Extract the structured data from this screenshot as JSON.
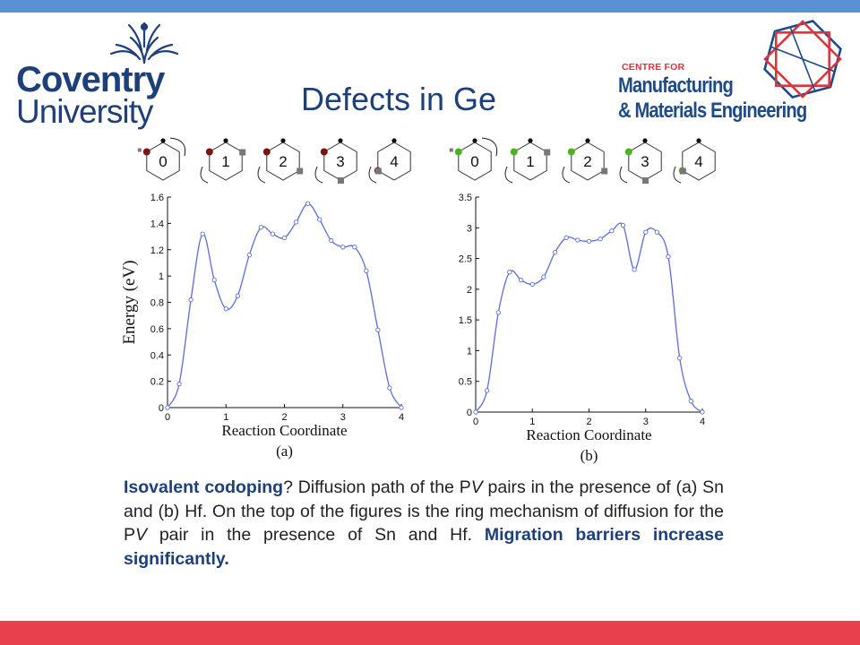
{
  "colors": {
    "top_bar": "#5b8fd6",
    "bottom_bar": "#e8404d",
    "title": "#1d3f7a",
    "curve": "#5b6ed8",
    "sn_dot": "#7b1414",
    "hf_dot": "#4cb320"
  },
  "logo_left": {
    "line1": "Coventry",
    "line2": "University"
  },
  "logo_right": {
    "small": "CENTRE FOR",
    "line1": "Manufacturing",
    "line2": "& Materials Engineering"
  },
  "title": "Defects in Ge",
  "ring_labels": [
    "0",
    "1",
    "2",
    "3",
    "4"
  ],
  "chart_data": [
    {
      "type": "line",
      "panel_label": "(a)",
      "xlabel": "Reaction Coordinate",
      "ylabel": "Energy (eV)",
      "xlim": [
        0,
        4
      ],
      "ylim": [
        0,
        1.6
      ],
      "xticks": [
        "0",
        "1",
        "2",
        "3",
        "4"
      ],
      "yticks": [
        "0",
        "0.2",
        "0.4",
        "0.6",
        "0.8",
        "1",
        "1.2",
        "1.4",
        "1.6"
      ],
      "x": [
        0,
        0.2,
        0.4,
        0.6,
        0.8,
        1.0,
        1.2,
        1.4,
        1.6,
        1.8,
        2.0,
        2.2,
        2.4,
        2.6,
        2.8,
        3.0,
        3.2,
        3.4,
        3.6,
        3.8,
        4.0
      ],
      "y": [
        0,
        0.18,
        0.82,
        1.32,
        0.97,
        0.75,
        0.85,
        1.16,
        1.37,
        1.32,
        1.29,
        1.41,
        1.55,
        1.43,
        1.27,
        1.22,
        1.22,
        1.04,
        0.59,
        0.15,
        0
      ]
    },
    {
      "type": "line",
      "panel_label": "(b)",
      "xlabel": "Reaction Coordinate",
      "ylabel": "",
      "xlim": [
        0,
        4
      ],
      "ylim": [
        0,
        3.5
      ],
      "xticks": [
        "0",
        "1",
        "2",
        "3",
        "4"
      ],
      "yticks": [
        "0",
        "0.5",
        "1",
        "1.5",
        "2",
        "2.5",
        "3",
        "3.5"
      ],
      "x": [
        0,
        0.2,
        0.4,
        0.6,
        0.8,
        1.0,
        1.2,
        1.4,
        1.6,
        1.8,
        2.0,
        2.2,
        2.4,
        2.6,
        2.8,
        3.0,
        3.2,
        3.4,
        3.6,
        3.8,
        4.0
      ],
      "y": [
        0,
        0.35,
        1.62,
        2.28,
        2.15,
        2.08,
        2.2,
        2.6,
        2.84,
        2.8,
        2.78,
        2.82,
        2.95,
        3.04,
        2.32,
        2.93,
        2.93,
        2.53,
        0.88,
        0.18,
        0
      ]
    }
  ],
  "caption": {
    "bold1": "Isovalent codoping",
    "t1": "? Diffusion path of the P",
    "v1": "V",
    "t2": " pairs in the presence of (a) Sn and (b) Hf.  On the top of the figures is the ring mechanism of diffusion for the P",
    "v2": "V",
    "t3": " pair in the presence of Sn and Hf. ",
    "bold2": "Migration barriers increase significantly."
  }
}
